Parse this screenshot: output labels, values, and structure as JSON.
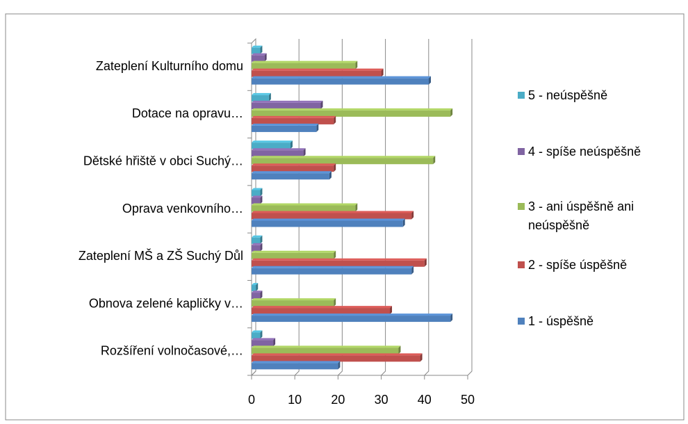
{
  "chart_data": {
    "type": "bar",
    "orientation": "horizontal",
    "categories": [
      "Zateplení Kulturního domu",
      "Dotace na opravu…",
      "Dětské hřiště v obci Suchý…",
      "Oprava venkovního…",
      "Zateplení MŠ a ZŠ Suchý Důl",
      "Obnova zelené kapličky v…",
      "Rozšíření volnočasové,…"
    ],
    "series": [
      {
        "name": "5 - neúspěšně",
        "color": "#4bacc6",
        "values": [
          2,
          4,
          9,
          2,
          2,
          1,
          2
        ]
      },
      {
        "name": "4 - spíše neúspěšně",
        "color": "#8064a2",
        "values": [
          3,
          16,
          12,
          2,
          2,
          2,
          5
        ]
      },
      {
        "name": "3 - ani úspěšně ani neúspěšně",
        "color": "#9bbb59",
        "values": [
          24,
          46,
          42,
          24,
          19,
          19,
          34
        ]
      },
      {
        "name": "2 - spíše úspěšně",
        "color": "#c0504d",
        "values": [
          30,
          19,
          19,
          37,
          40,
          32,
          39
        ]
      },
      {
        "name": "1 - úspěšně",
        "color": "#4f81bd",
        "values": [
          41,
          15,
          18,
          35,
          37,
          46,
          20
        ]
      }
    ],
    "xlim": [
      0,
      50
    ],
    "xticks": [
      0,
      10,
      20,
      30,
      40,
      50
    ],
    "grid": true,
    "legend": "right"
  }
}
